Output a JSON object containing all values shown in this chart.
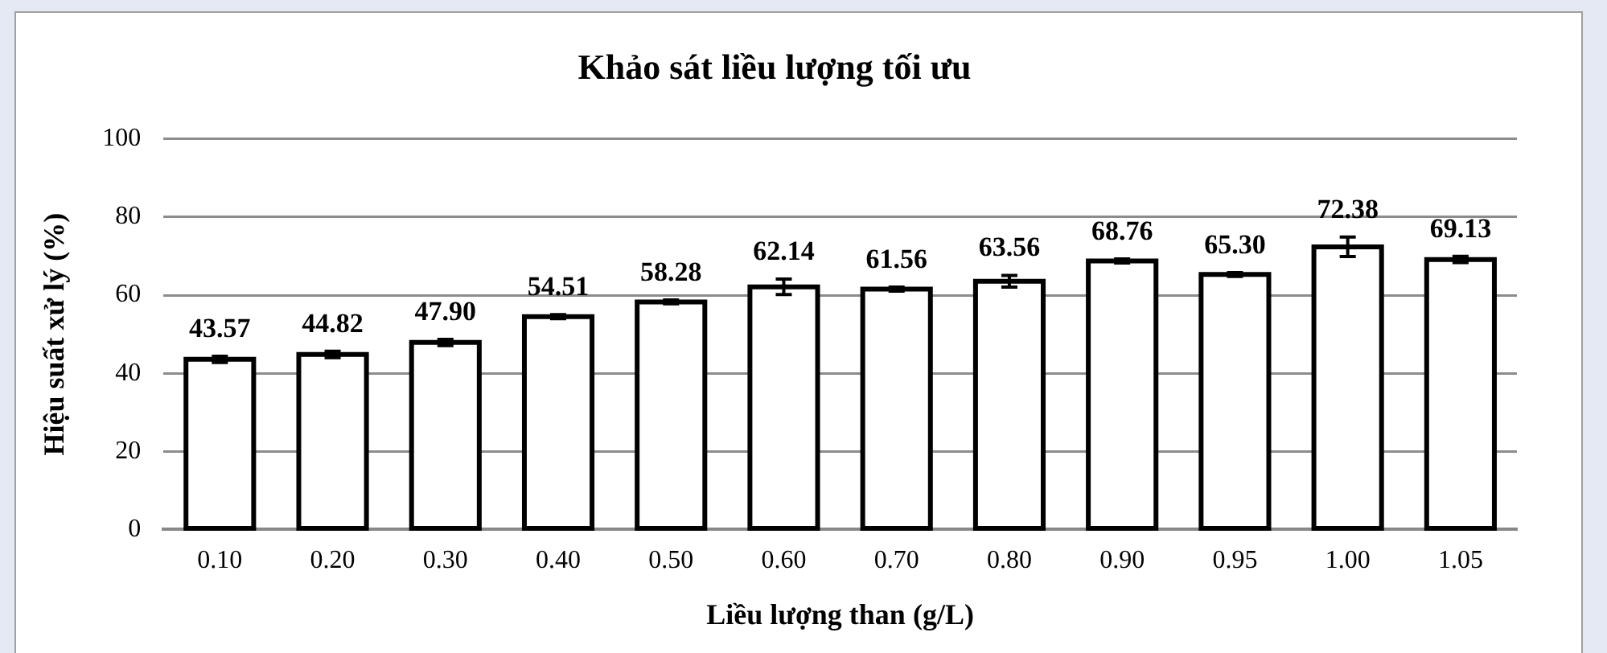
{
  "chart_data": {
    "type": "bar",
    "title": "Khảo sát liều lượng tối ưu",
    "xlabel": "Liều lượng than (g/L)",
    "ylabel": "Hiệu suất xử lý (%)",
    "categories": [
      "0.10",
      "0.20",
      "0.30",
      "0.40",
      "0.50",
      "0.60",
      "0.70",
      "0.80",
      "0.90",
      "0.95",
      "1.00",
      "1.05"
    ],
    "values": [
      43.57,
      44.82,
      47.9,
      54.51,
      58.28,
      62.14,
      61.56,
      63.56,
      68.76,
      65.3,
      72.38,
      69.13
    ],
    "value_labels": [
      "43.57",
      "44.82",
      "47.90",
      "54.51",
      "58.28",
      "62.14",
      "61.56",
      "63.56",
      "68.76",
      "65.30",
      "72.38",
      "69.13"
    ],
    "errors": [
      0.8,
      0.8,
      0.8,
      0.5,
      0.5,
      2,
      0.5,
      1.5,
      0.5,
      0.5,
      2.5,
      0.8
    ],
    "color": "#ffffff",
    "ylim": [
      0,
      100
    ],
    "yticks": [
      0,
      20,
      40,
      60,
      80,
      100
    ],
    "grid": "y",
    "legend": false
  }
}
